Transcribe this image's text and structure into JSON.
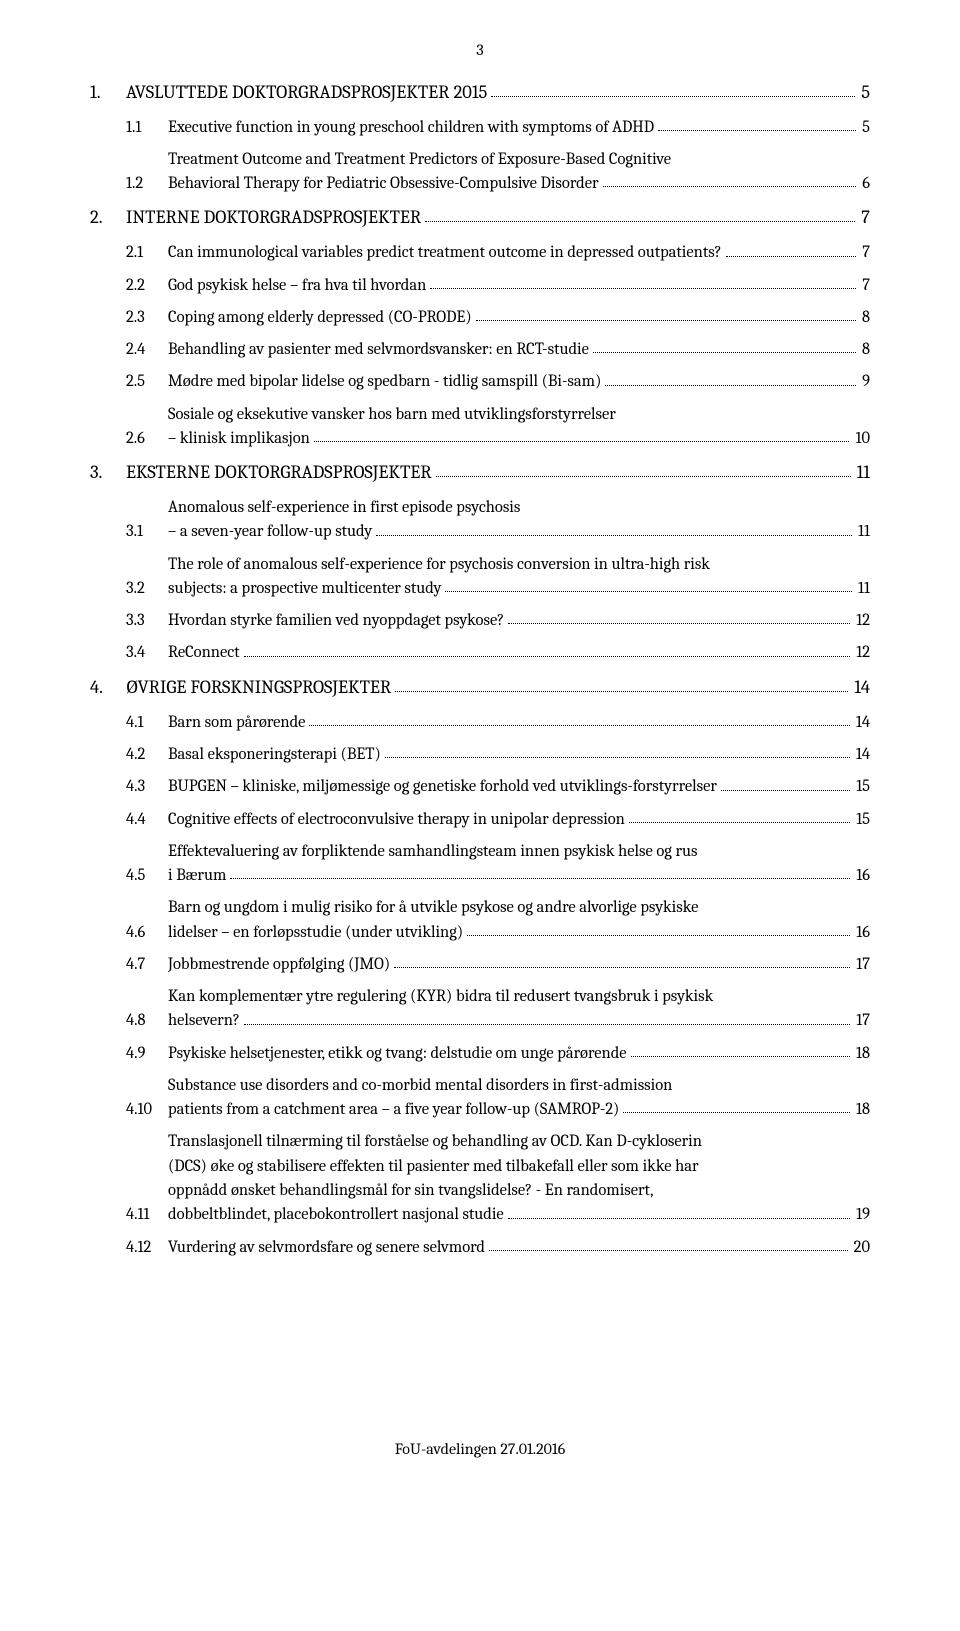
{
  "page_number": "3",
  "footer": "FoU-avdelingen 27.01.2016",
  "toc": [
    {
      "level": 1,
      "num": "1.",
      "text": "AVSLUTTEDE DOKTORGRADSPROSJEKTER 2015",
      "page": "5"
    },
    {
      "level": 2,
      "num": "1.1",
      "text": "Executive function in young preschool children with symptoms of ADHD",
      "page": "5"
    },
    {
      "level": 2,
      "num": "1.2",
      "text_lines": [
        "Treatment Outcome and Treatment Predictors of Exposure-Based Cognitive",
        "Behavioral Therapy for Pediatric Obsessive-Compulsive Disorder"
      ],
      "page": "6"
    },
    {
      "level": 1,
      "num": "2.",
      "text": "INTERNE DOKTORGRADSPROSJEKTER",
      "page": "7"
    },
    {
      "level": 2,
      "num": "2.1",
      "text": "Can immunological variables predict treatment outcome in depressed outpatients?",
      "page": "7"
    },
    {
      "level": 2,
      "num": "2.2",
      "text": "God psykisk helse – fra hva til hvordan",
      "page": "7"
    },
    {
      "level": 2,
      "num": "2.3",
      "text": "Coping among elderly depressed (CO-PRODE)",
      "page": "8"
    },
    {
      "level": 2,
      "num": "2.4",
      "text": "Behandling av pasienter med selvmordsvansker: en RCT-studie",
      "page": "8"
    },
    {
      "level": 2,
      "num": "2.5",
      "text": "Mødre med bipolar lidelse og spedbarn - tidlig samspill (Bi-sam)",
      "page": "9"
    },
    {
      "level": 2,
      "num": "2.6",
      "text_lines": [
        "Sosiale og eksekutive vansker hos barn med utviklingsforstyrrelser",
        "– klinisk implikasjon"
      ],
      "page": "10"
    },
    {
      "level": 1,
      "num": "3.",
      "text": "EKSTERNE DOKTORGRADSPROSJEKTER",
      "page": "11"
    },
    {
      "level": 2,
      "num": "3.1",
      "text_lines": [
        "Anomalous self-experience in first episode psychosis",
        "– a seven-year follow-up study"
      ],
      "page": "11"
    },
    {
      "level": 2,
      "num": "3.2",
      "text_lines": [
        "The role of anomalous self-experience for psychosis conversion in ultra-high risk",
        "subjects: a prospective multicenter study"
      ],
      "page": "11"
    },
    {
      "level": 2,
      "num": "3.3",
      "text": "Hvordan styrke familien ved nyoppdaget psykose?",
      "page": "12"
    },
    {
      "level": 2,
      "num": "3.4",
      "text": "ReConnect",
      "page": "12"
    },
    {
      "level": 1,
      "num": "4.",
      "text": "ØVRIGE FORSKNINGSPROSJEKTER",
      "page": "14"
    },
    {
      "level": 2,
      "num": "4.1",
      "text": "Barn som pårørende",
      "page": "14"
    },
    {
      "level": 2,
      "num": "4.2",
      "text": "Basal eksponeringsterapi (BET)",
      "page": "14"
    },
    {
      "level": 2,
      "num": "4.3",
      "text": "BUPGEN – kliniske, miljømessige og genetiske forhold ved utviklings-forstyrrelser",
      "page": "15"
    },
    {
      "level": 2,
      "num": "4.4",
      "text": "Cognitive effects of electroconvulsive therapy in unipolar depression",
      "page": "15"
    },
    {
      "level": 2,
      "num": "4.5",
      "text_lines": [
        "Effektevaluering av forpliktende samhandlingsteam innen psykisk helse og rus",
        "i Bærum"
      ],
      "page": "16"
    },
    {
      "level": 2,
      "num": "4.6",
      "text_lines": [
        "Barn og ungdom i mulig risiko for å utvikle psykose og andre alvorlige psykiske",
        "lidelser – en forløpsstudie (under utvikling)"
      ],
      "page": "16"
    },
    {
      "level": 2,
      "num": "4.7",
      "text": "Jobbmestrende oppfølging (JMO)",
      "page": "17"
    },
    {
      "level": 2,
      "num": "4.8",
      "text_lines": [
        "Kan komplementær ytre regulering (KYR) bidra til redusert tvangsbruk i psykisk",
        "helsevern?"
      ],
      "page": "17"
    },
    {
      "level": 2,
      "num": "4.9",
      "text": "Psykiske helsetjenester, etikk og tvang: delstudie om unge pårørende",
      "page": "18"
    },
    {
      "level": 2,
      "num": "4.10",
      "text_lines": [
        "Substance use disorders and co-morbid mental disorders in first-admission",
        "patients from a catchment area – a five year follow-up (SAMROP-2)"
      ],
      "page": "18"
    },
    {
      "level": 2,
      "num": "4.11",
      "text_lines": [
        "Translasjonell tilnærming til forståelse og behandling av OCD. Kan D-cykloserin",
        "(DCS) øke og stabilisere effekten til pasienter med tilbakefall  eller som ikke har",
        "oppnådd ønsket behandlingsmål for sin tvangslidelse?  - En randomisert,",
        "dobbeltblindet, placebokontrollert nasjonal studie"
      ],
      "page": "19"
    },
    {
      "level": 2,
      "num": "4.12",
      "text": "Vurdering av selvmordsfare og senere selvmord",
      "page": "20"
    }
  ]
}
